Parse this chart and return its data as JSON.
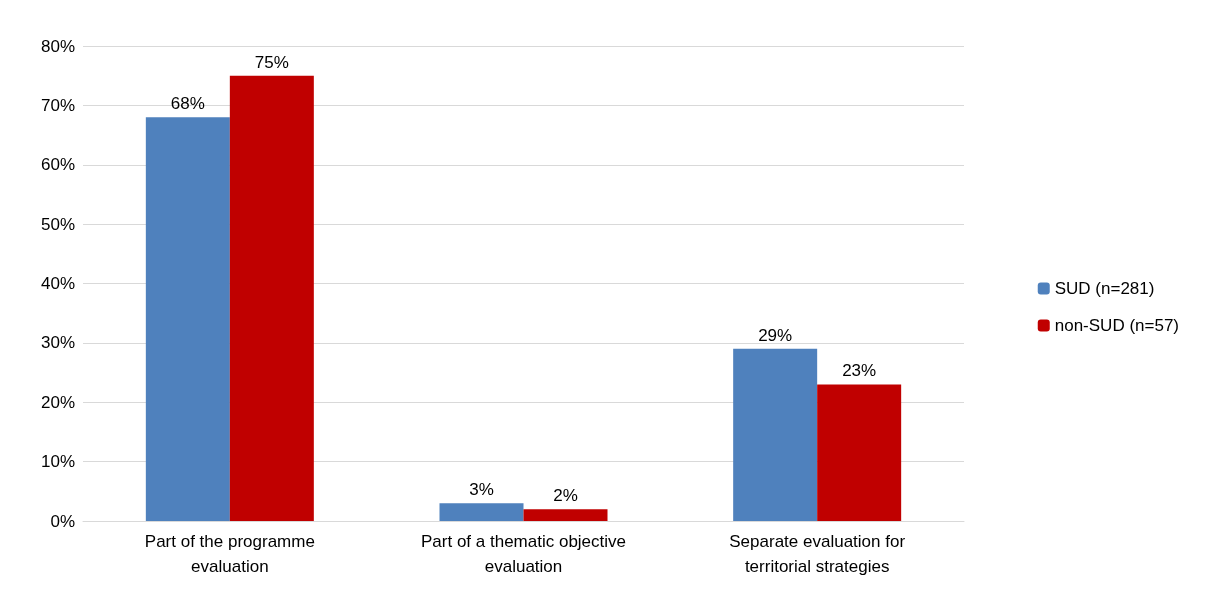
{
  "chart_data": {
    "type": "bar",
    "categories": [
      "Part of the programme\nevaluation",
      "Part of a thematic objective\nevaluation",
      "Separate evaluation for\nterritorial strategies"
    ],
    "series": [
      {
        "name": "SUD (n=281)",
        "color": "#4f81bd",
        "values": [
          68,
          3,
          29
        ]
      },
      {
        "name": "non-SUD (n=57)",
        "color": "#c00000",
        "values": [
          75,
          2,
          23
        ]
      }
    ],
    "ylim": [
      0,
      80
    ],
    "yticks": [
      {
        "value": 0,
        "label": "0%"
      },
      {
        "value": 10,
        "label": "10%"
      },
      {
        "value": 20,
        "label": "20%"
      },
      {
        "value": 30,
        "label": "30%"
      },
      {
        "value": 40,
        "label": "40%"
      },
      {
        "value": 50,
        "label": "50%"
      },
      {
        "value": 60,
        "label": "60%"
      },
      {
        "value": 70,
        "label": "70%"
      },
      {
        "value": 80,
        "label": "80%"
      }
    ],
    "value_labels": [
      [
        "68%",
        "3%",
        "29%"
      ],
      [
        "75%",
        "2%",
        "23%"
      ]
    ],
    "grid": "y",
    "legend": "right"
  }
}
